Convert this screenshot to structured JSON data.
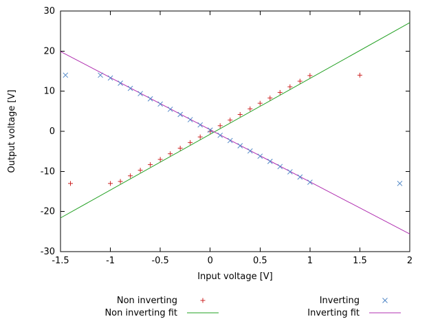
{
  "chart_data": {
    "type": "scatter",
    "title": "",
    "xlabel": "Input voltage [V]",
    "ylabel": "Output voltage [V]",
    "xlim": [
      -1.5,
      2
    ],
    "ylim": [
      -30,
      30
    ],
    "grid": false,
    "legend_position": "below-plot-two-columns",
    "axis_color": "#000000",
    "xticks": [
      {
        "value": -1.5,
        "label": "-1.5"
      },
      {
        "value": -1,
        "label": "-1"
      },
      {
        "value": -0.5,
        "label": "-0.5"
      },
      {
        "value": 0,
        "label": "0"
      },
      {
        "value": 0.5,
        "label": "0.5"
      },
      {
        "value": 1,
        "label": "1"
      },
      {
        "value": 1.5,
        "label": "1.5"
      },
      {
        "value": 2,
        "label": "2"
      }
    ],
    "yticks": [
      {
        "value": -30,
        "label": "-30"
      },
      {
        "value": -20,
        "label": "-20"
      },
      {
        "value": -10,
        "label": "-10"
      },
      {
        "value": 0,
        "label": "0"
      },
      {
        "value": 10,
        "label": "10"
      },
      {
        "value": 20,
        "label": "20"
      },
      {
        "value": 30,
        "label": "30"
      }
    ],
    "series": [
      {
        "name": "Non inverting",
        "kind": "points",
        "marker": "plus",
        "color": "#cc2222",
        "points": [
          [
            -1.4,
            -13
          ],
          [
            -1.0,
            -13
          ],
          [
            -0.9,
            -12.5
          ],
          [
            -0.8,
            -11.1
          ],
          [
            -0.7,
            -9.7
          ],
          [
            -0.6,
            -8.3
          ],
          [
            -0.5,
            -7.0
          ],
          [
            -0.4,
            -5.6
          ],
          [
            -0.3,
            -4.2
          ],
          [
            -0.2,
            -2.8
          ],
          [
            -0.1,
            -1.4
          ],
          [
            0,
            0
          ],
          [
            0.1,
            1.4
          ],
          [
            0.2,
            2.8
          ],
          [
            0.3,
            4.2
          ],
          [
            0.4,
            5.6
          ],
          [
            0.5,
            7.0
          ],
          [
            0.6,
            8.3
          ],
          [
            0.7,
            9.7
          ],
          [
            0.8,
            11.1
          ],
          [
            0.9,
            12.5
          ],
          [
            1.0,
            13.9
          ],
          [
            1.5,
            14
          ]
        ]
      },
      {
        "name": "Inverting",
        "kind": "points",
        "marker": "cross",
        "color": "#4f86c6",
        "points": [
          [
            -1.45,
            14
          ],
          [
            -1.1,
            14
          ],
          [
            -1.0,
            13.3
          ],
          [
            -0.9,
            12.0
          ],
          [
            -0.8,
            10.7
          ],
          [
            -0.7,
            9.4
          ],
          [
            -0.6,
            8.1
          ],
          [
            -0.5,
            6.8
          ],
          [
            -0.4,
            5.5
          ],
          [
            -0.3,
            4.2
          ],
          [
            -0.2,
            2.9
          ],
          [
            -0.1,
            1.6
          ],
          [
            0,
            0.3
          ],
          [
            0.1,
            -1.0
          ],
          [
            0.2,
            -2.3
          ],
          [
            0.3,
            -3.6
          ],
          [
            0.4,
            -4.9
          ],
          [
            0.5,
            -6.2
          ],
          [
            0.6,
            -7.5
          ],
          [
            0.7,
            -8.8
          ],
          [
            0.8,
            -10.1
          ],
          [
            0.9,
            -11.4
          ],
          [
            1.0,
            -12.7
          ],
          [
            1.9,
            -13
          ]
        ]
      },
      {
        "name": "Non inverting fit",
        "kind": "line",
        "color": "#22a022",
        "points": [
          [
            -1.5,
            -21.6
          ],
          [
            2,
            27.1
          ]
        ]
      },
      {
        "name": "Inverting fit",
        "kind": "line",
        "color": "#b02fb0",
        "points": [
          [
            -1.5,
            19.9
          ],
          [
            2,
            -25.6
          ]
        ]
      }
    ]
  }
}
